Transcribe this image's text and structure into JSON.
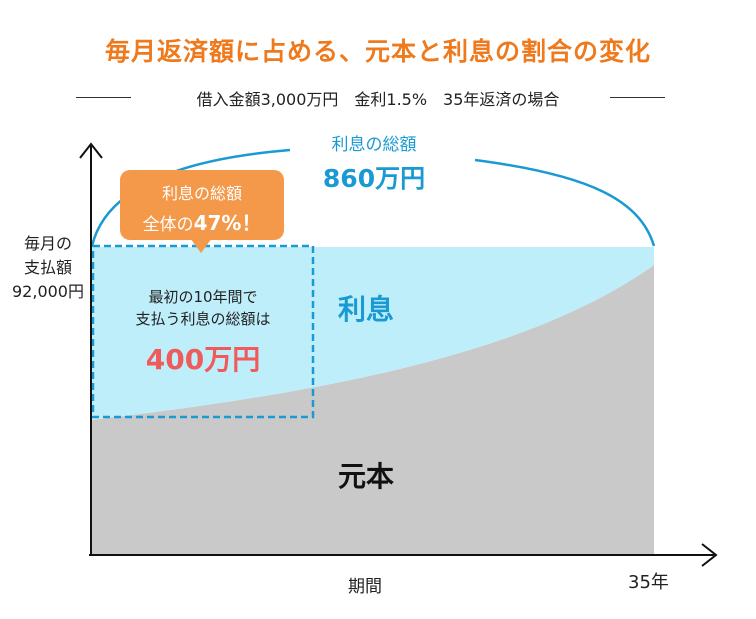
{
  "title": "毎月返済額に占める、元本と利息の割合の変化",
  "subtitle": "借入金額3,000万円　金利1.5%　35年返済の場合",
  "axes": {
    "y_label_lines": [
      "毎月の",
      "支払額",
      "92,000円"
    ],
    "x_label": "期間",
    "x_end_label": "35年"
  },
  "total_interest": {
    "label": "利息の総額",
    "value": "860万円"
  },
  "callout": {
    "line1": "利息の総額",
    "line2_prefix": "全体の",
    "line2_value": "47%",
    "line2_suffix": "！"
  },
  "box": {
    "line1": "最初の10年間で",
    "line2": "支払う利息の総額は",
    "amount": "400万円"
  },
  "areas": {
    "interest_label": "利息",
    "principal_label": "元本"
  },
  "colors": {
    "title": "#ee7a1d",
    "interest_area": "#bfeefb",
    "principal_area": "#c9c9c9",
    "accent_blue": "#1a9ad3",
    "callout": "#f4994a",
    "amount_red": "#ef5a5a"
  }
}
